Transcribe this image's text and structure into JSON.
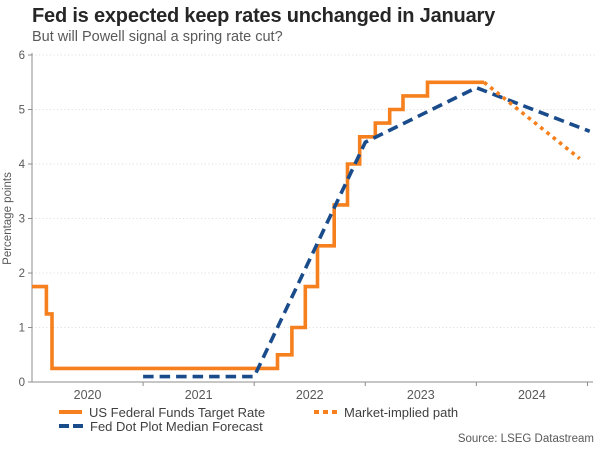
{
  "header": {
    "title": "Fed is expected keep rates unchanged in January",
    "subtitle": "But will Powell signal a spring rate cut?"
  },
  "source": "Source: LSEG Datastream",
  "colors": {
    "orange": "#F6801E",
    "navy": "#1A4C8B",
    "axis": "#8C8C8C",
    "grid": "#DADADA",
    "tick_text": "#595959",
    "title_text": "#262626",
    "legend_text": "#404040"
  },
  "chart_data": {
    "type": "line",
    "title": "Fed is expected keep rates unchanged in January",
    "subtitle": "But will Powell signal a spring rate cut?",
    "ylabel": "Percentage points",
    "xlabel": "",
    "grid": "horizontal-dotted",
    "legend_position": "bottom",
    "x_axis": {
      "range": [
        2020,
        2025.05
      ],
      "tick_years": [
        2021,
        2022,
        2023,
        2024,
        2025
      ],
      "year_labels": [
        "2020",
        "2021",
        "2022",
        "2023",
        "2024"
      ]
    },
    "y_axis": {
      "range": [
        0,
        6
      ],
      "ticks": [
        0,
        1,
        2,
        3,
        4,
        5,
        6
      ]
    },
    "series": [
      {
        "name": "US Federal Funds Target Rate",
        "color_key": "orange",
        "style": "solid",
        "render": "step",
        "points": [
          [
            2020.0,
            1.75
          ],
          [
            2020.13,
            1.25
          ],
          [
            2020.18,
            0.25
          ],
          [
            2022.21,
            0.5
          ],
          [
            2022.34,
            1.0
          ],
          [
            2022.46,
            1.75
          ],
          [
            2022.57,
            2.5
          ],
          [
            2022.72,
            3.25
          ],
          [
            2022.84,
            4.0
          ],
          [
            2022.95,
            4.5
          ],
          [
            2023.09,
            4.75
          ],
          [
            2023.22,
            5.0
          ],
          [
            2023.34,
            5.25
          ],
          [
            2023.56,
            5.5
          ],
          [
            2024.07,
            5.5
          ]
        ]
      },
      {
        "name": "Fed Dot Plot Median Forecast",
        "color_key": "navy",
        "style": "dashed",
        "render": "line",
        "points": [
          [
            2021.0,
            0.1
          ],
          [
            2022.0,
            0.1
          ],
          [
            2023.0,
            4.4
          ],
          [
            2024.0,
            5.4
          ],
          [
            2025.02,
            4.6
          ]
        ]
      },
      {
        "name": "Market-implied path",
        "color_key": "orange",
        "style": "dotted",
        "render": "line",
        "points": [
          [
            2024.07,
            5.5
          ],
          [
            2024.93,
            4.1
          ]
        ]
      }
    ]
  }
}
